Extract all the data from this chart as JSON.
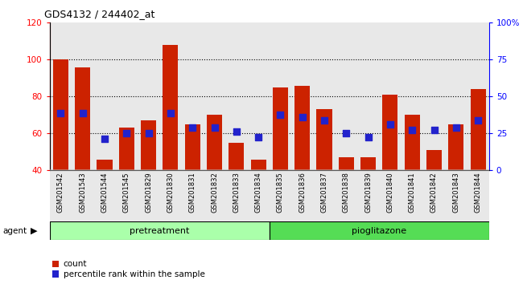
{
  "title": "GDS4132 / 244402_at",
  "samples": [
    "GSM201542",
    "GSM201543",
    "GSM201544",
    "GSM201545",
    "GSM201829",
    "GSM201830",
    "GSM201831",
    "GSM201832",
    "GSM201833",
    "GSM201834",
    "GSM201835",
    "GSM201836",
    "GSM201837",
    "GSM201838",
    "GSM201839",
    "GSM201840",
    "GSM201841",
    "GSM201842",
    "GSM201843",
    "GSM201844"
  ],
  "count_values": [
    100,
    96,
    46,
    63,
    67,
    108,
    65,
    70,
    55,
    46,
    85,
    86,
    73,
    47,
    47,
    81,
    70,
    51,
    65,
    84
  ],
  "percentile_left_y": [
    71,
    71,
    57,
    60,
    60,
    71,
    63,
    63,
    61,
    58,
    70,
    69,
    67,
    60,
    58,
    65,
    62,
    62,
    63,
    67
  ],
  "y_min": 40,
  "y_max": 120,
  "y_ticks": [
    40,
    60,
    80,
    100,
    120
  ],
  "y2_ticks_vals": [
    0,
    25,
    50,
    75,
    100
  ],
  "y2_tick_labels": [
    "0",
    "25",
    "50",
    "75",
    "100%"
  ],
  "bar_color": "#cc2200",
  "dot_color": "#2222cc",
  "pretreatment_color": "#aaffaa",
  "pioglitazone_color": "#55dd55",
  "pretreatment_label": "pretreatment",
  "pioglitazone_label": "pioglitazone",
  "pretreatment_count": 10,
  "pioglitazone_count": 10,
  "bg_bar_color": "#cccccc",
  "legend_count": "count",
  "legend_percentile": "percentile rank within the sample",
  "agent_label": "agent"
}
